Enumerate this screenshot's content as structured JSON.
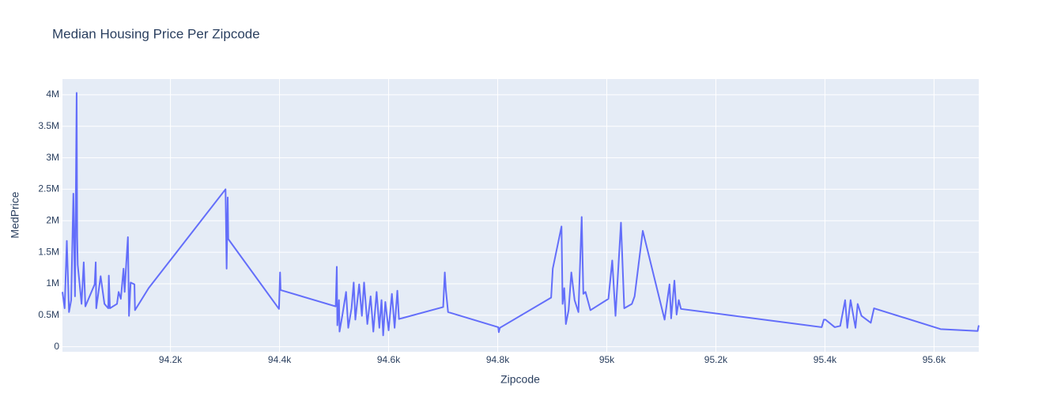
{
  "chart_data": {
    "type": "line",
    "title": "Median Housing Price Per Zipcode",
    "x_label": "Zipcode",
    "y_label": "MedPrice",
    "color": "#636efa",
    "grid": true,
    "x": [
      94002,
      94006,
      94010,
      94014,
      94018,
      94022,
      94025,
      94028,
      94029,
      94030,
      94037,
      94041,
      94044,
      94061,
      94063,
      94064,
      94072,
      94079,
      94086,
      94087,
      94089,
      94102,
      94105,
      94109,
      94114,
      94116,
      94119,
      94122,
      94124,
      94127,
      94134,
      94135,
      94160,
      94301,
      94303,
      94305,
      94306,
      94399,
      94401,
      94402,
      94503,
      94505,
      94506,
      94509,
      94510,
      94515,
      94522,
      94526,
      94532,
      94536,
      94539,
      94546,
      94551,
      94555,
      94561,
      94567,
      94572,
      94578,
      94583,
      94587,
      94590,
      94594,
      94600,
      94606,
      94611,
      94616,
      94619,
      94700,
      94703,
      94705,
      94709,
      94801,
      94802,
      94804,
      94898,
      94901,
      94917,
      94919,
      94922,
      94925,
      94930,
      94935,
      94941,
      94948,
      94954,
      94957,
      94961,
      94970,
      95003,
      95010,
      95016,
      95026,
      95032,
      95046,
      95051,
      95066,
      95106,
      95115,
      95118,
      95124,
      95128,
      95132,
      95136,
      95394,
      95398,
      95401,
      95418,
      95428,
      95437,
      95441,
      95447,
      95456,
      95460,
      95467,
      95484,
      95490,
      95612,
      95680,
      95682
    ],
    "values": [
      870000,
      610000,
      1680000,
      550000,
      740000,
      2430000,
      800000,
      4030000,
      1740000,
      1300000,
      680000,
      1340000,
      640000,
      990000,
      1340000,
      610000,
      1120000,
      680000,
      610000,
      1130000,
      610000,
      680000,
      870000,
      760000,
      1240000,
      870000,
      1330000,
      1740000,
      490000,
      1020000,
      990000,
      580000,
      930000,
      2500000,
      1240000,
      2370000,
      1710000,
      600000,
      1180000,
      900000,
      640000,
      1270000,
      340000,
      740000,
      240000,
      490000,
      870000,
      300000,
      610000,
      1020000,
      430000,
      990000,
      490000,
      1020000,
      360000,
      800000,
      240000,
      870000,
      300000,
      740000,
      180000,
      710000,
      260000,
      840000,
      300000,
      890000,
      440000,
      630000,
      1180000,
      900000,
      550000,
      310000,
      230000,
      300000,
      780000,
      1240000,
      1910000,
      680000,
      930000,
      360000,
      580000,
      1180000,
      740000,
      550000,
      2060000,
      840000,
      870000,
      580000,
      760000,
      1370000,
      490000,
      1970000,
      610000,
      680000,
      800000,
      1840000,
      430000,
      990000,
      450000,
      1050000,
      510000,
      740000,
      600000,
      310000,
      430000,
      430000,
      310000,
      330000,
      740000,
      300000,
      740000,
      300000,
      680000,
      490000,
      380000,
      610000,
      280000,
      250000,
      340000
    ],
    "xlim": [
      94002,
      95682
    ],
    "ylim": [
      -80000,
      4250000
    ],
    "xticks": [
      {
        "value": 94200,
        "label": "94.2k"
      },
      {
        "value": 94400,
        "label": "94.4k"
      },
      {
        "value": 94600,
        "label": "94.6k"
      },
      {
        "value": 94800,
        "label": "94.8k"
      },
      {
        "value": 95000,
        "label": "95k"
      },
      {
        "value": 95200,
        "label": "95.2k"
      },
      {
        "value": 95400,
        "label": "95.4k"
      },
      {
        "value": 95600,
        "label": "95.6k"
      }
    ],
    "yticks": [
      0,
      {
        "value": 500000,
        "label": "0.5M"
      },
      {
        "value": 1000000,
        "label": "1M"
      },
      {
        "value": 1500000,
        "label": "1.5M"
      },
      {
        "value": 2000000,
        "label": "2M"
      },
      {
        "value": 2500000,
        "label": "2.5M"
      },
      {
        "value": 3000000,
        "label": "3M"
      },
      {
        "value": 3500000,
        "label": "3.5M"
      },
      {
        "value": 4000000,
        "label": "4M"
      }
    ]
  }
}
